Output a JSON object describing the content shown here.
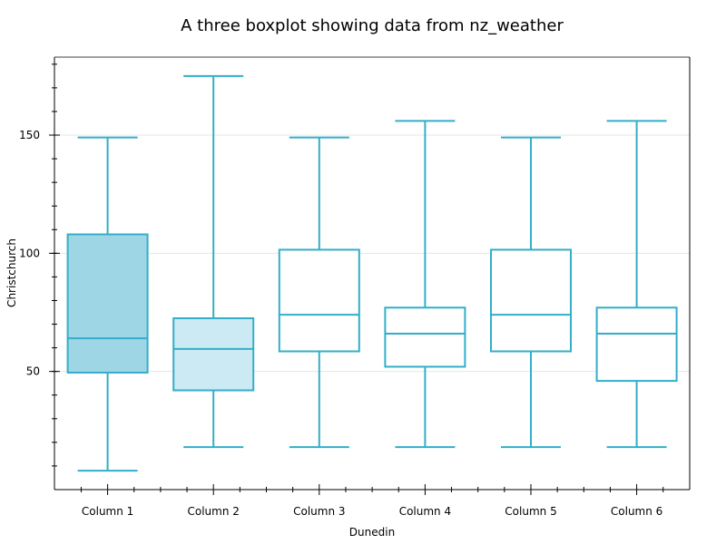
{
  "chart_data": {
    "type": "boxplot",
    "title": "A three boxplot showing data from nz_weather",
    "xlabel": "Dunedin",
    "ylabel": "Christchurch",
    "ylim": [
      0,
      183
    ],
    "yticks": [
      50,
      100,
      150
    ],
    "grid": true,
    "legend": "none",
    "colors": {
      "stroke": "#33aec9",
      "fill_dark": "#9fd6e5",
      "fill_light": "#cceaf3",
      "fill_none": "#ffffff",
      "grid": "#e6e6e6",
      "axis": "#000000"
    },
    "categories": [
      "Column 1",
      "Column 2",
      "Column 3",
      "Column 4",
      "Column 5",
      "Column 6"
    ],
    "boxes": [
      {
        "whislo": 8,
        "q1": 49.5,
        "med": 64,
        "q3": 108,
        "whishi": 149,
        "fill": "fill_dark"
      },
      {
        "whislo": 18,
        "q1": 42,
        "med": 59.5,
        "q3": 72.5,
        "whishi": 175,
        "fill": "fill_light"
      },
      {
        "whislo": 18,
        "q1": 58.5,
        "med": 74,
        "q3": 101.5,
        "whishi": 149,
        "fill": "fill_none"
      },
      {
        "whislo": 18,
        "q1": 52,
        "med": 66,
        "q3": 77,
        "whishi": 156,
        "fill": "fill_none"
      },
      {
        "whislo": 18,
        "q1": 58.5,
        "med": 74,
        "q3": 101.5,
        "whishi": 149,
        "fill": "fill_none"
      },
      {
        "whislo": 18,
        "q1": 46,
        "med": 66,
        "q3": 77,
        "whishi": 156,
        "fill": "fill_none"
      }
    ]
  }
}
